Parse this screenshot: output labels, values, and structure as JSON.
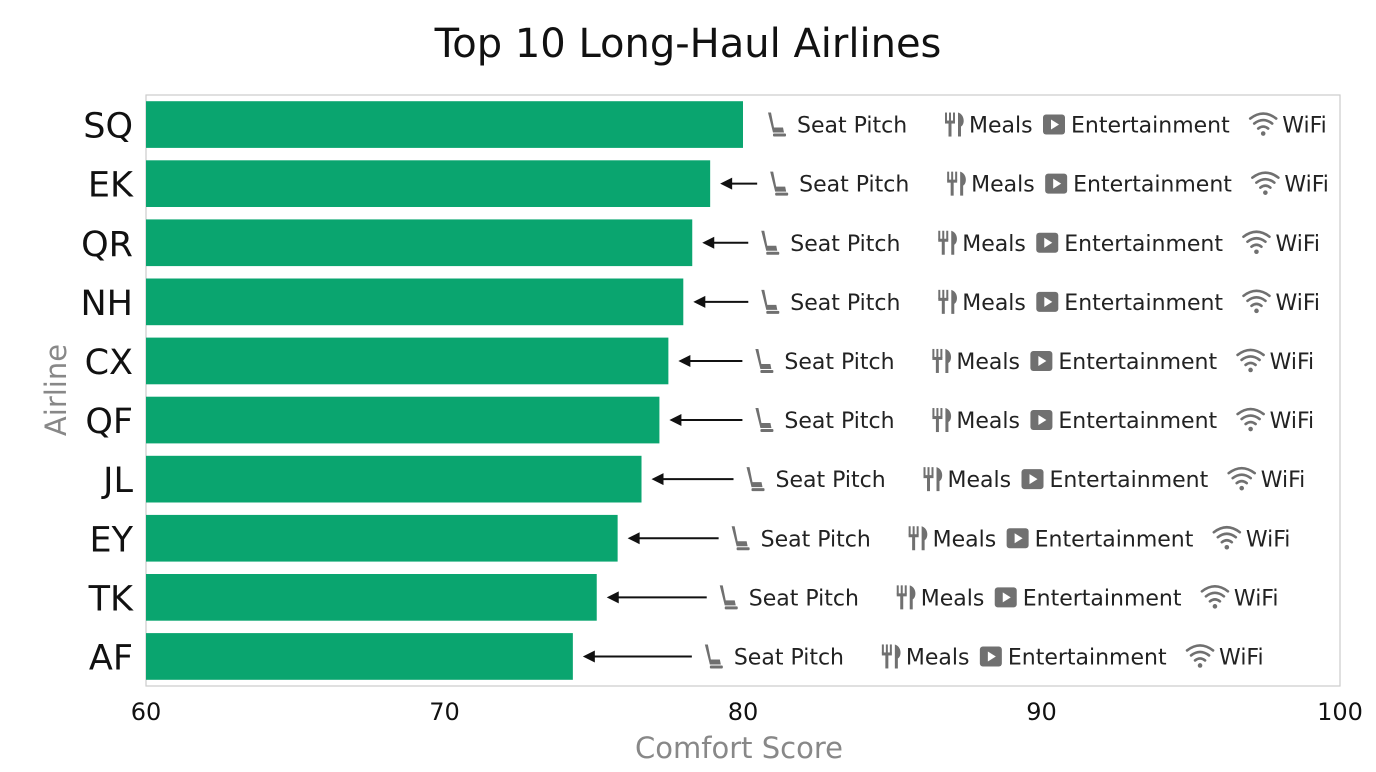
{
  "chart_data": {
    "type": "bar",
    "orientation": "horizontal",
    "title": "Top 10 Long-Haul Airlines",
    "xlabel": "Comfort Score",
    "ylabel": "Airline",
    "xlim": [
      60,
      100
    ],
    "xticks": [
      "60",
      "70",
      "80",
      "90",
      "100"
    ],
    "categories": [
      "SQ",
      "EK",
      "QR",
      "NH",
      "CX",
      "QF",
      "JL",
      "EY",
      "TK",
      "AF"
    ],
    "values": [
      80.0,
      78.9,
      78.3,
      78.0,
      77.5,
      77.2,
      76.6,
      75.8,
      75.1,
      74.3
    ],
    "bar_color": "#0aa56f",
    "grid": false,
    "annotations": {
      "items": [
        {
          "label": "Seat Pitch",
          "icon": "seat-icon"
        },
        {
          "label": "Meals",
          "icon": "fork-knife-icon"
        },
        {
          "label": "Entertainment",
          "icon": "play-icon"
        },
        {
          "label": "WiFi",
          "icon": "wifi-icon"
        }
      ],
      "arrow_icon": "left-arrow-icon",
      "icon_color": "#707070"
    }
  }
}
